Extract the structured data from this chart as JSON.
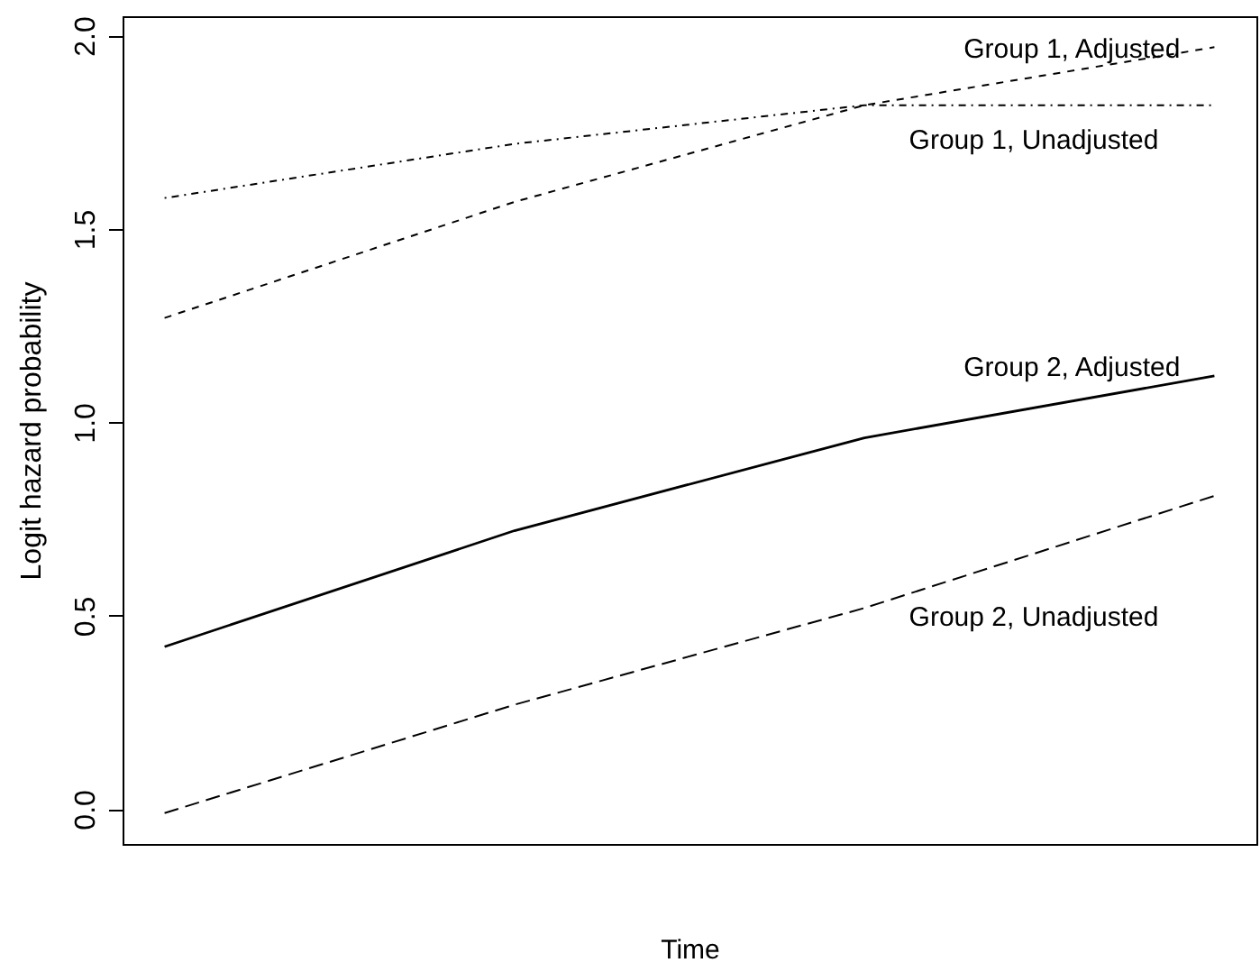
{
  "chart_data": {
    "type": "line",
    "xlabel": "Time",
    "ylabel": "Logit hazard probability",
    "categories": [
      null,
      null,
      null,
      null
    ],
    "ylim": [
      -0.09,
      2.05
    ],
    "yticks": [
      {
        "value": 0,
        "label": "0.0"
      },
      {
        "value": 0.5,
        "label": "0.5"
      },
      {
        "value": 1,
        "label": "1.0"
      },
      {
        "value": 1.5,
        "label": "1.5"
      },
      {
        "value": 2,
        "label": "2.0"
      }
    ],
    "tick_labels": "y",
    "series": [
      {
        "name": "Group 1, Adjusted",
        "color": "#000000",
        "line_style": "dashed",
        "values": [
          1.27,
          1.57,
          1.82,
          1.97
        ]
      },
      {
        "name": "Group 1, Unadjusted",
        "color": "#000000",
        "line_style": "dashdot",
        "values": [
          1.58,
          1.72,
          1.82,
          1.82
        ]
      },
      {
        "name": "Group 2, Adjusted",
        "color": "#000000",
        "line_style": "solid",
        "values": [
          0.42,
          0.72,
          0.96,
          1.12
        ]
      },
      {
        "name": "Group 2, Unadjusted",
        "color": "#000000",
        "line_style": "longdash",
        "values": [
          -0.01,
          0.27,
          0.52,
          0.81
        ]
      }
    ]
  }
}
